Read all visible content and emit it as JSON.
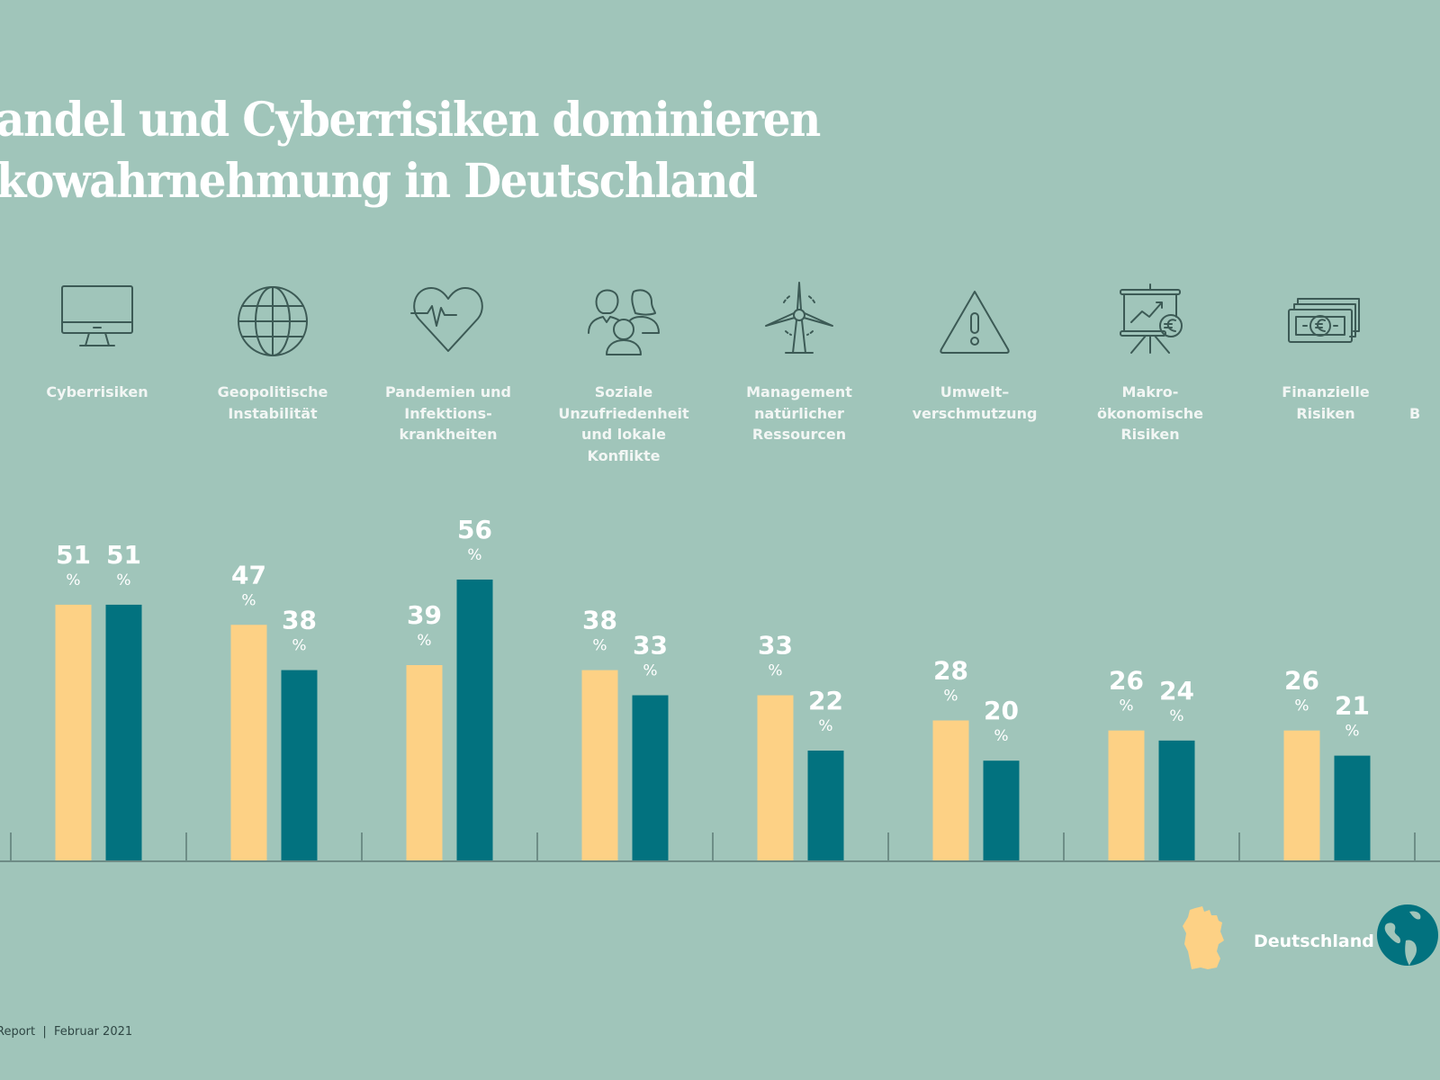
{
  "title": {
    "line1": "andel und Cyberrisiken dominieren",
    "line2": "kowahrnehmung in Deutschland"
  },
  "categories": [
    {
      "label": "Cyberrisiken",
      "icon": "monitor-icon"
    },
    {
      "label": "Geopolitische\nInstabilität",
      "icon": "globe-icon"
    },
    {
      "label": "Pandemien und\nInfektions-\nkrankheiten",
      "icon": "heart-pulse-icon"
    },
    {
      "label": "Soziale\nUnzufriedenheit\nund lokale\nKonflikte",
      "icon": "people-group-icon"
    },
    {
      "label": "Management\nnatürlicher\nRessourcen",
      "icon": "wind-turbine-icon"
    },
    {
      "label": "Umwelt–\nverschmutzung",
      "icon": "warning-triangle-icon"
    },
    {
      "label": "Makro-\nökonomische\nRisiken",
      "icon": "presentation-euro-icon"
    },
    {
      "label": "Finanzielle\nRisiken",
      "icon": "banknotes-euro-icon"
    },
    {
      "label": "B",
      "icon": ""
    }
  ],
  "chart_data": {
    "type": "bar",
    "title": "…andel und Cyberrisiken dominieren …kowahrnehmung in Deutschland",
    "xlabel": "",
    "ylabel": "",
    "unit": "%",
    "categories": [
      "Cyberrisiken",
      "Geopolitische Instabilität",
      "Pandemien und Infektionskrankheiten",
      "Soziale Unzufriedenheit und lokale Konflikte",
      "Management natürlicher Ressourcen",
      "Umweltverschmutzung",
      "Makroökonomische Risiken",
      "Finanzielle Risiken"
    ],
    "series": [
      {
        "name": "Deutschland",
        "color": "#FDD185",
        "values": [
          51,
          47,
          39,
          38,
          33,
          28,
          26,
          26
        ]
      },
      {
        "name": "Welt",
        "color": "#02727F",
        "values": [
          51,
          38,
          56,
          33,
          22,
          20,
          24,
          21
        ]
      }
    ],
    "ylim": [
      0,
      60
    ],
    "grid": false,
    "legend": "bottom-right"
  },
  "legend": {
    "deutschland_label": "Deutschland",
    "germany_icon": "germany-map-icon",
    "world_icon": "world-globe-icon"
  },
  "footer": {
    "text": "Report  |  Februar 2021"
  },
  "colors": {
    "background": "#A0C5BA",
    "deutschland": "#FDD185",
    "welt": "#02727F",
    "icon_stroke": "#3C5A55",
    "text_light": "#FFFFFF"
  }
}
